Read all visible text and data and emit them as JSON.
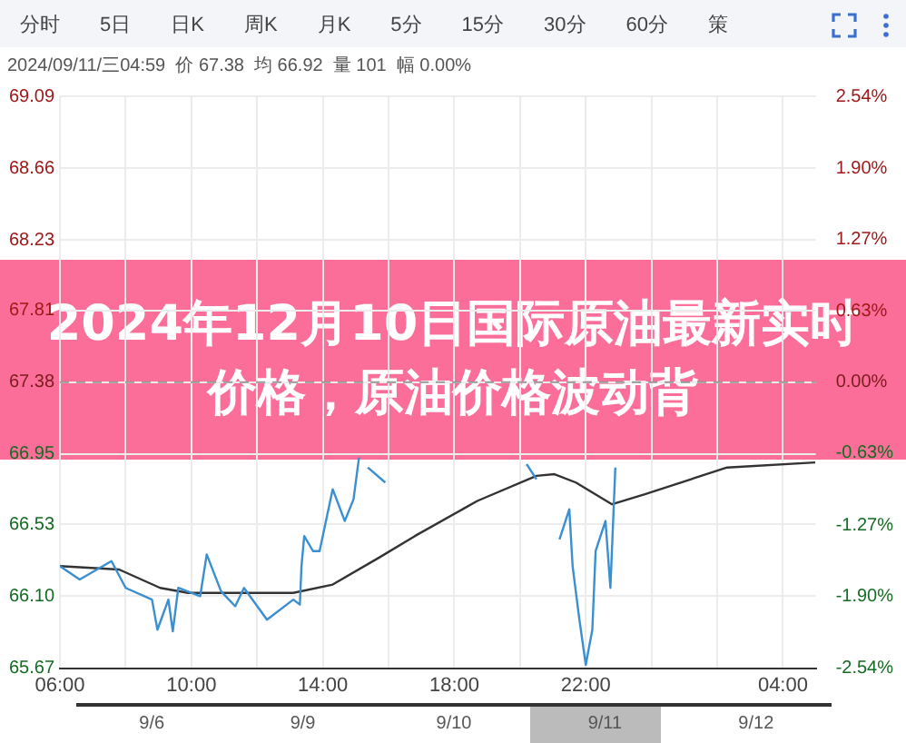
{
  "chart_data": {
    "type": "line",
    "title": "2024年12月10日国际原油最新实时价格，原油价格波动背",
    "annotations": [
      "分时",
      "5日",
      "日K",
      "周K",
      "月K",
      "5分",
      "15分",
      "30分",
      "60分",
      "策",
      "2024/09/11/三04:59  价 67.38  均 66.92  量 101  幅 0.00%",
      "9/6",
      "9/9",
      "9/10",
      "9/11",
      "9/12"
    ],
    "series": [
      {
        "color": "#3a8fd0",
        "x": [
          "2024-09-10T06:00",
          "2024-09-10T06:36",
          "2024-09-10T07:34",
          "2024-09-10T08:00",
          "2024-09-10T08:48",
          "2024-09-10T08:58",
          "2024-09-10T09:18",
          "2024-09-10T09:26",
          "2024-09-10T09:36",
          "2024-09-10T10:16",
          "2024-09-10T10:28",
          "2024-09-10T10:54",
          "2024-09-10T11:20",
          "2024-09-10T11:36",
          "2024-09-10T12:18",
          "2024-09-10T13:06",
          "2024-09-10T13:18",
          "2024-09-10T13:21",
          "2024-09-10T13:26",
          "2024-09-10T13:42",
          "2024-09-10T13:54",
          "2024-09-10T14:18",
          "2024-09-10T14:40",
          "2024-09-10T14:56",
          "2024-09-10T15:06",
          "2024-09-10T15:17",
          "2024-09-10T15:22",
          "2024-09-10T15:54",
          "2024-09-10T15:59",
          "2024-09-10T16:15",
          "2024-09-10T16:24",
          "2024-09-10T16:36",
          "2024-09-10T17:12",
          "2024-09-10T18:00",
          "2024-09-10T18:48",
          "2024-09-10T19:30",
          "2024-09-10T20:00",
          "2024-09-10T20:12",
          "2024-09-10T20:30",
          "2024-09-10T20:42",
          "2024-09-10T21:12",
          "2024-09-10T21:30",
          "2024-09-10T21:36",
          "2024-09-10T21:48",
          "2024-09-10T22:00",
          "2024-09-10T22:12",
          "2024-09-10T22:18",
          "2024-09-10T22:36",
          "2024-09-10T22:45",
          "2024-09-10T22:54"
        ],
        "values": [
          66.28,
          66.2,
          66.31,
          66.15,
          66.08,
          65.9,
          66.08,
          65.89,
          66.15,
          66.1,
          66.35,
          66.13,
          66.04,
          66.15,
          65.96,
          66.08,
          66.05,
          66.28,
          66.46,
          66.37,
          66.37,
          66.74,
          66.55,
          66.68,
          66.93,
          null,
          66.87,
          66.78,
          null,
          null,
          null,
          null,
          null,
          null,
          null,
          null,
          null,
          66.89,
          66.8,
          null,
          66.44,
          66.62,
          66.28,
          65.97,
          65.69,
          65.9,
          66.37,
          66.55,
          66.15,
          66.87
        ]
      },
      {
        "color": "#333333",
        "x": [
          "2024-09-10T06:00",
          "2024-09-10T07:48",
          "2024-09-10T09:03",
          "2024-09-10T09:54",
          "2024-09-10T11:42",
          "2024-09-10T13:06",
          "2024-09-10T14:18",
          "2024-09-10T15:42",
          "2024-09-10T16:48",
          "2024-09-10T18:42",
          "2024-09-10T20:30",
          "2024-09-10T21:03",
          "2024-09-10T21:42",
          "2024-09-10T22:48",
          "2024-09-10T23:48",
          "2024-09-11T02:18",
          "2024-09-11T04:59"
        ],
        "values": [
          66.28,
          66.26,
          66.15,
          66.12,
          66.12,
          66.12,
          66.17,
          66.33,
          66.46,
          66.67,
          66.82,
          66.83,
          66.78,
          66.65,
          66.71,
          66.87,
          66.9
        ]
      }
    ],
    "xlim": [
      "2024-09-10T06:00",
      "2024-09-11T05:00"
    ],
    "xticks": [
      {
        "value": "2024-09-10T06:00",
        "label": "06:00"
      },
      {
        "value": "2024-09-10T08:00",
        "label": null
      },
      {
        "value": "2024-09-10T10:00",
        "label": "10:00"
      },
      {
        "value": "2024-09-10T12:00",
        "label": null
      },
      {
        "value": "2024-09-10T14:00",
        "label": "14:00"
      },
      {
        "value": "2024-09-10T16:00",
        "label": null
      },
      {
        "value": "2024-09-10T18:00",
        "label": "18:00"
      },
      {
        "value": "2024-09-10T20:00",
        "label": null
      },
      {
        "value": "2024-09-10T22:00",
        "label": "22:00"
      },
      {
        "value": "2024-09-11T00:00",
        "label": null
      },
      {
        "value": "2024-09-11T02:00",
        "label": null
      },
      {
        "value": "2024-09-11T04:00",
        "label": "04:00"
      }
    ],
    "ylim": [
      65.67,
      69.09
    ],
    "yticks": [
      65.67,
      {
        "value": 66.1,
        "label": "66.10"
      },
      66.53,
      66.95,
      67.38,
      67.81,
      68.23,
      68.66,
      69.09
    ],
    "y2lim": [
      -2.54,
      2.54
    ],
    "y2ticks": [
      {
        "value": -2.54,
        "label": "-2.54%"
      },
      {
        "value": -1.9,
        "label": "-1.90%"
      },
      {
        "value": -1.27,
        "label": "-1.27%"
      },
      {
        "value": -0.63,
        "label": "-0.63%"
      },
      {
        "value": 0,
        "label": "0.00%"
      },
      {
        "value": 0.63,
        "label": "0.63%"
      },
      {
        "value": 1.27,
        "label": "1.27%"
      },
      {
        "value": 1.9,
        "label": "1.90%"
      },
      {
        "value": 2.54,
        "label": "2.54%"
      }
    ],
    "ref_lines": [
      {
        "axis": "y",
        "value": 67.38,
        "color": "#999999",
        "line_style": "dashed"
      }
    ],
    "grid": true,
    "legend": false,
    "marker": "none",
    "line_style": "solid"
  }
}
